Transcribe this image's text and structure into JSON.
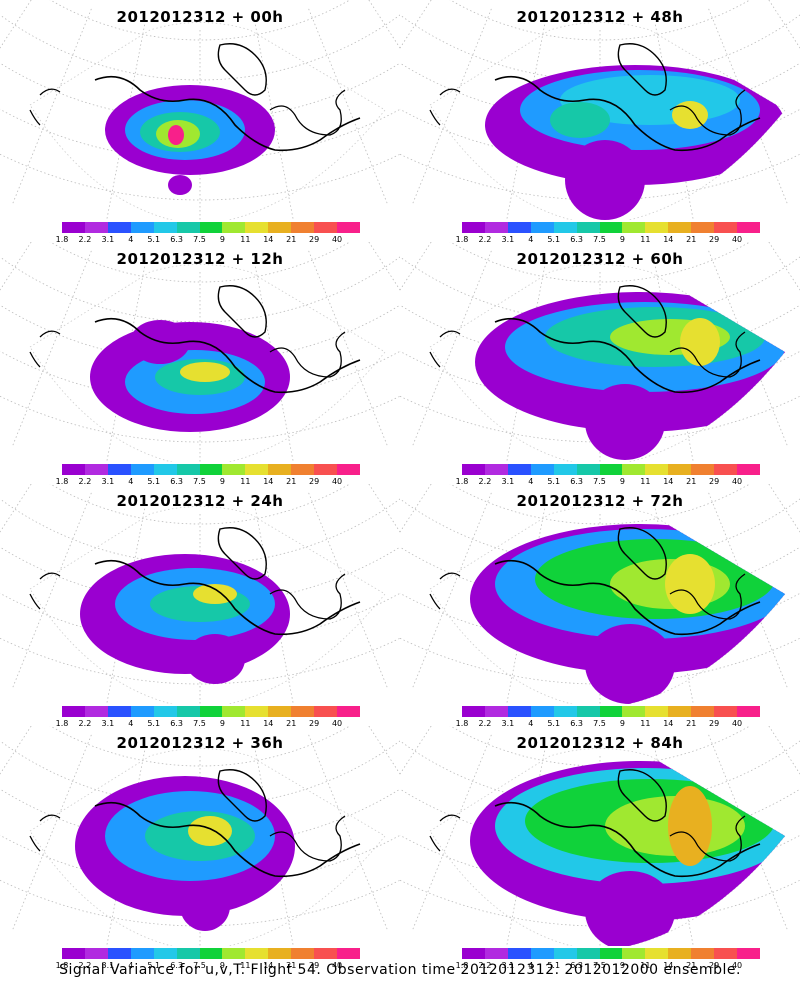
{
  "panels": [
    {
      "title": "2012012312 + 00h"
    },
    {
      "title": "2012012312 + 48h"
    },
    {
      "title": "2012012312 + 12h"
    },
    {
      "title": "2012012312 + 60h"
    },
    {
      "title": "2012012312 + 24h"
    },
    {
      "title": "2012012312 + 72h"
    },
    {
      "title": "2012012312 + 36h"
    },
    {
      "title": "2012012312 + 84h"
    }
  ],
  "colorbar": {
    "colors": [
      "#9a00d0",
      "#b12ae0",
      "#2a52ff",
      "#1f9bff",
      "#22c8e8",
      "#16c8a8",
      "#10d23a",
      "#a0e830",
      "#e6e030",
      "#e8b020",
      "#f08030",
      "#f85050",
      "#f8208a"
    ],
    "labels": [
      "1.8",
      "2.2",
      "3.1",
      "4",
      "5.1",
      "6.3",
      "7.5",
      "9",
      "11",
      "14",
      "21",
      "29",
      "40"
    ]
  },
  "footer": {
    "caption": "Signal Variance for u,v,T. Flight 54. Observation time 2012012312. 2012012000 ensemble."
  }
}
